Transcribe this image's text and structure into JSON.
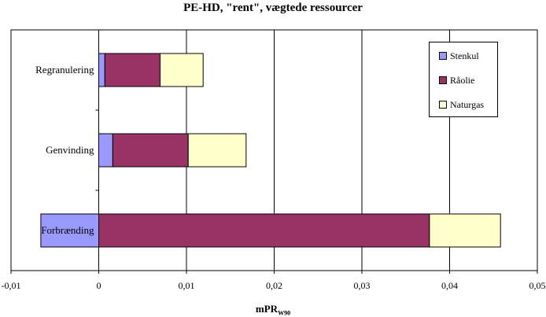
{
  "chart_data": {
    "type": "bar",
    "orientation": "horizontal",
    "stacked": true,
    "title": "PE-HD, \"rent\", vægtede ressourcer",
    "xlabel": "mPR",
    "xlabel_subscript": "W90",
    "xlim": [
      -0.01,
      0.05
    ],
    "x_ticks": [
      "-0,01",
      "0",
      "0,01",
      "0,02",
      "0,03",
      "0,04",
      "0,05"
    ],
    "grid": "vertical",
    "legend_position": "top-right",
    "categories": [
      "Regranulering",
      "Genvinding",
      "Forbrænding"
    ],
    "series": [
      {
        "name": "Stenkul",
        "color": "#9999ff",
        "values": [
          0.0007,
          0.0016,
          -0.0066
        ]
      },
      {
        "name": "Råolie",
        "color": "#993366",
        "values": [
          0.0063,
          0.0086,
          0.0377
        ]
      },
      {
        "name": "Naturgas",
        "color": "#ffffcc",
        "values": [
          0.0049,
          0.0066,
          0.0081
        ]
      }
    ]
  }
}
